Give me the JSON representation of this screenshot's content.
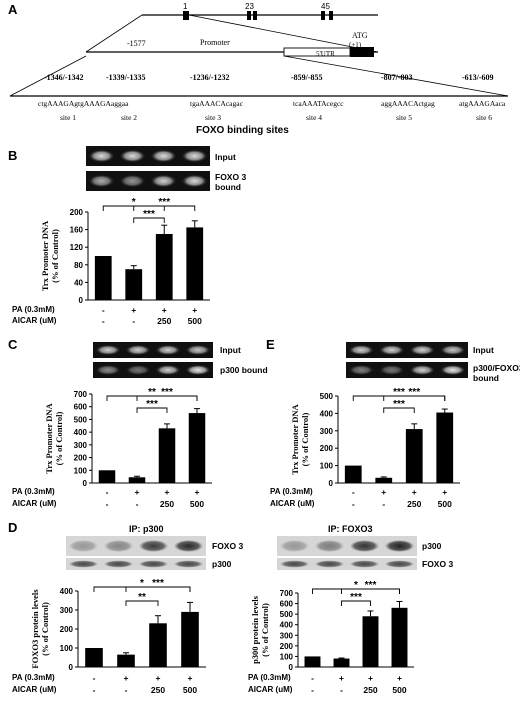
{
  "figure": {
    "panel_labels": {
      "A": "A",
      "B": "B",
      "C": "C",
      "D": "D",
      "E": "E"
    }
  },
  "panel_a": {
    "exon_labels": [
      "1",
      "23",
      "45"
    ],
    "promoter_start": "-1577",
    "promoter_label": "Promoter",
    "atg_label": "ATG",
    "atg_pos": "(+1)",
    "utr_label": "5'UTR",
    "sites": [
      {
        "coords": "-1346/-1342",
        "seq": "ctgAAAGAgtgAAAGAaggaa",
        "name": "site 1"
      },
      {
        "coords": "-1339/-1335",
        "seq": "",
        "name": "site 2"
      },
      {
        "coords": "-1236/-1232",
        "seq": "tgaAAACAcagac",
        "name": "site 3"
      },
      {
        "coords": "-859/-855",
        "seq": "tcaAAATAcegcc",
        "name": "site 4"
      },
      {
        "coords": "-807/-803",
        "seq": "aggAAACActgag",
        "name": "site 5"
      },
      {
        "coords": "-613/-609",
        "seq": "atgAAAGAaca",
        "name": "site 6"
      }
    ],
    "caption": "FOXO binding sites"
  },
  "treatment_row_labels": {
    "pa": "PA (0.3mM)",
    "aicar": "AICAR (uM)"
  },
  "conditions": {
    "pa": [
      "-",
      "+",
      "+",
      "+"
    ],
    "aicar": [
      "-",
      "-",
      "250",
      "500"
    ]
  },
  "sig": {
    "one": "*",
    "two": "**",
    "three": "***"
  },
  "panel_b": {
    "gel_labels": [
      "Input",
      "FOXO 3",
      "bound"
    ],
    "chart_data": {
      "type": "bar",
      "categories": [
        "Control",
        "PA",
        "PA+AICAR 250",
        "PA+AICAR 500"
      ],
      "values": [
        100,
        70,
        150,
        165
      ],
      "errors": [
        0,
        8,
        20,
        15
      ],
      "ylabel": "Trx Promoter DNA (% of Control)",
      "ylabel_lines": [
        "Trx Promoter DNA",
        "(% of Control)"
      ],
      "ylim": [
        0,
        200
      ],
      "yticks": [
        "0",
        "40",
        "80",
        "120",
        "160",
        "200"
      ]
    }
  },
  "panel_c": {
    "gel_labels": [
      "Input",
      "p300 bound"
    ],
    "chart_data": {
      "type": "bar",
      "categories": [
        "Control",
        "PA",
        "PA+AICAR 250",
        "PA+AICAR 500"
      ],
      "values": [
        100,
        45,
        430,
        550
      ],
      "errors": [
        0,
        8,
        35,
        35
      ],
      "ylabel": "Trx Promoter DNA (% of Control)",
      "ylabel_lines": [
        "Trx Promoter DNA",
        "(% of Control)"
      ],
      "ylim": [
        0,
        700
      ],
      "yticks": [
        "0",
        "100",
        "200",
        "300",
        "400",
        "500",
        "600",
        "700"
      ]
    }
  },
  "panel_e": {
    "gel_labels": [
      "Input",
      "p300/FOXO3",
      "bound"
    ],
    "chart_data": {
      "type": "bar",
      "categories": [
        "Control",
        "PA",
        "PA+AICAR 250",
        "PA+AICAR 500"
      ],
      "values": [
        100,
        30,
        310,
        405
      ],
      "errors": [
        0,
        5,
        30,
        20
      ],
      "ylabel": "Trx Promoter DNA (% of Control)",
      "ylabel_lines": [
        "Trx Promoter DNA",
        "(% of Control)"
      ],
      "ylim": [
        0,
        500
      ],
      "yticks": [
        "0",
        "100",
        "200",
        "300",
        "400",
        "500"
      ]
    }
  },
  "panel_d1": {
    "ip_label": "IP: p300",
    "blot_labels": [
      "FOXO 3",
      "p300"
    ],
    "chart_data": {
      "type": "bar",
      "categories": [
        "Control",
        "PA",
        "PA+AICAR 250",
        "PA+AICAR 500"
      ],
      "values": [
        100,
        65,
        230,
        290
      ],
      "errors": [
        0,
        10,
        40,
        50
      ],
      "ylabel": "FOXO3 protein levels (% of Control)",
      "ylabel_lines": [
        "FOXO3 protein levels",
        "(% of Control)"
      ],
      "ylim": [
        0,
        400
      ],
      "yticks": [
        "0",
        "100",
        "200",
        "300",
        "400"
      ]
    }
  },
  "panel_d2": {
    "ip_label": "IP: FOXO3",
    "blot_labels": [
      "p300",
      "FOXO 3"
    ],
    "chart_data": {
      "type": "bar",
      "categories": [
        "Control",
        "PA",
        "PA+AICAR 250",
        "PA+AICAR 500"
      ],
      "values": [
        100,
        80,
        480,
        560
      ],
      "errors": [
        0,
        5,
        50,
        60
      ],
      "ylabel": "p300 protein levels (% of Control)",
      "ylabel_lines": [
        "p300 protein levels",
        "(% of Control)"
      ],
      "ylim": [
        0,
        700
      ],
      "yticks": [
        "0",
        "100",
        "200",
        "300",
        "400",
        "500",
        "600",
        "700"
      ]
    }
  }
}
